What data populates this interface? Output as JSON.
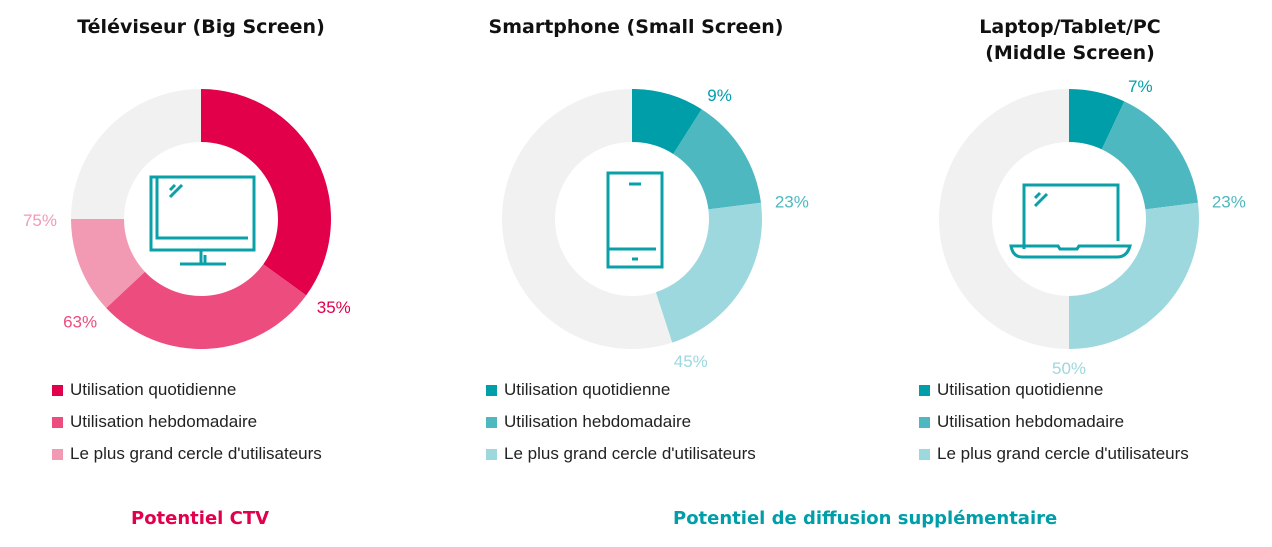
{
  "chart_data": [
    {
      "type": "pie",
      "title": "Téléviseur (Big Screen)",
      "cumulative_percent": [
        35,
        63,
        75
      ],
      "labels": [
        "35%",
        "63%",
        "75%"
      ],
      "colors": [
        "#e2004a",
        "#ec4c7e",
        "#f29ab4"
      ],
      "remainder_color": "#f1f1f1",
      "icon": "tv-icon",
      "legend": [
        "Utilisation quotidienne",
        "Utilisation hebdomadaire",
        "Le plus grand cercle d'utilisateurs"
      ]
    },
    {
      "type": "pie",
      "title": "Smartphone (Small Screen)",
      "cumulative_percent": [
        9,
        23,
        45
      ],
      "labels": [
        "9%",
        "23%",
        "45%"
      ],
      "colors": [
        "#009ea8",
        "#4db8c0",
        "#9dd8de"
      ],
      "remainder_color": "#f1f1f1",
      "icon": "smartphone-icon",
      "legend": [
        "Utilisation quotidienne",
        "Utilisation hebdomadaire",
        "Le plus grand cercle d'utilisateurs"
      ]
    },
    {
      "type": "pie",
      "title": "Laptop/Tablet/PC\n(Middle Screen)",
      "cumulative_percent": [
        7,
        23,
        50
      ],
      "labels": [
        "7%",
        "23%",
        "50%"
      ],
      "colors": [
        "#009ea8",
        "#4db8c0",
        "#9dd8de"
      ],
      "remainder_color": "#f1f1f1",
      "icon": "laptop-icon",
      "legend": [
        "Utilisation quotidienne",
        "Utilisation hebdomadaire",
        "Le plus grand cercle d'utilisateurs"
      ]
    }
  ],
  "footer": {
    "left": "Potentiel CTV",
    "left_color": "#e2004a",
    "right": "Potentiel de diffusion supplémentaire",
    "right_color": "#009ea8"
  },
  "icon_color": "#0aa0a8"
}
